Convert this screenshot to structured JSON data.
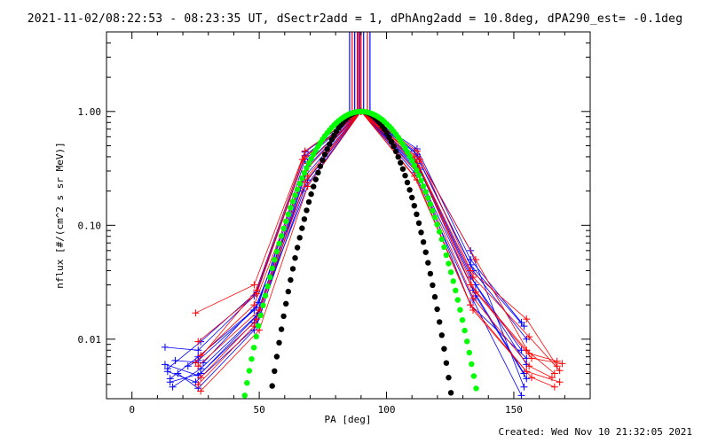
{
  "title": "2021-11-02/08:22:53 - 08:23:35 UT, dSectr2add = 1, dPhAng2add = 10.8deg, dPA290_est= -0.1deg",
  "footer": "Created: Wed Nov 10 21:32:05 2021",
  "chart_data": {
    "type": "line",
    "title": "2021-11-02/08:22:53 - 08:23:35 UT, dSectr2add = 1, dPhAng2add = 10.8deg, dPA290_est= -0.1deg",
    "xlabel": "PA [deg]",
    "ylabel": "nflux [#/(cm^2 s sr MeV)]",
    "xlim": [
      -10,
      180
    ],
    "ylim": [
      0.003,
      5
    ],
    "yscale": "log",
    "x_ticks": [
      0,
      50,
      100,
      150
    ],
    "y_ticks": [
      {
        "value": 0.01,
        "label": "0.01"
      },
      {
        "value": 0.1,
        "label": "0.10"
      },
      {
        "value": 1,
        "label": "1.00"
      }
    ],
    "grid": false,
    "colors": {
      "red": "#ff0000",
      "blue": "#0000ff",
      "black": "#000000",
      "green": "#00ff00",
      "purple": "#800080"
    },
    "reference_pa_lines": {
      "blue": [
        85.5,
        87.5,
        91.0,
        93.5
      ],
      "red": [
        86.5,
        88.5,
        90.0,
        92.5
      ],
      "purple": [
        89.0,
        89.5
      ]
    },
    "series": [
      {
        "color": "blue",
        "x": [
          13,
          26,
          48,
          68,
          90,
          112,
          133,
          153
        ],
        "y": [
          0.0085,
          0.008,
          0.024,
          0.44,
          1.0,
          0.47,
          0.05,
          0.014
        ]
      },
      {
        "color": "blue",
        "x": [
          14,
          27,
          49,
          68,
          90,
          111,
          133,
          154
        ],
        "y": [
          0.0055,
          0.0095,
          0.026,
          0.41,
          1.0,
          0.45,
          0.045,
          0.013
        ]
      },
      {
        "color": "blue",
        "x": [
          15,
          26,
          49,
          69,
          90,
          112,
          134,
          155
        ],
        "y": [
          0.0045,
          0.007,
          0.019,
          0.36,
          1.0,
          0.4,
          0.04,
          0.01
        ]
      },
      {
        "color": "blue",
        "x": [
          16,
          27,
          50,
          69,
          90,
          111,
          133,
          153
        ],
        "y": [
          0.0038,
          0.0055,
          0.017,
          0.33,
          1.0,
          0.38,
          0.035,
          0.008
        ]
      },
      {
        "color": "blue",
        "x": [
          13,
          26,
          48,
          68,
          90,
          112,
          135,
          155
        ],
        "y": [
          0.006,
          0.0048,
          0.014,
          0.3,
          1.0,
          0.35,
          0.03,
          0.006
        ]
      },
      {
        "color": "blue",
        "x": [
          14,
          25,
          49,
          68,
          90,
          111,
          134,
          154
        ],
        "y": [
          0.0052,
          0.0042,
          0.013,
          0.27,
          1.0,
          0.33,
          0.027,
          0.005
        ]
      },
      {
        "color": "blue",
        "x": [
          18,
          26,
          48,
          69,
          90,
          113,
          135,
          155
        ],
        "y": [
          0.005,
          0.0037,
          0.012,
          0.25,
          1.0,
          0.31,
          0.024,
          0.0045
        ]
      },
      {
        "color": "blue",
        "x": [
          17,
          28,
          50,
          68,
          90,
          112,
          133,
          154
        ],
        "y": [
          0.0065,
          0.0062,
          0.021,
          0.38,
          1.0,
          0.42,
          0.06,
          0.0038
        ]
      },
      {
        "color": "blue",
        "x": [
          15,
          27,
          49,
          69,
          90,
          111,
          134,
          153
        ],
        "y": [
          0.0042,
          0.005,
          0.016,
          0.22,
          1.0,
          0.29,
          0.022,
          0.0032
        ]
      },
      {
        "color": "blue",
        "x": [
          22,
          26,
          48,
          67,
          90,
          112,
          133,
          155
        ],
        "y": [
          0.0058,
          0.0065,
          0.018,
          0.2,
          1.0,
          0.3,
          0.02,
          0.0068
        ]
      },
      {
        "color": "red",
        "x": [
          25,
          48,
          68,
          90,
          112,
          133,
          155,
          167
        ],
        "y": [
          0.017,
          0.03,
          0.45,
          1.0,
          0.45,
          0.04,
          0.015,
          0.0058
        ]
      },
      {
        "color": "red",
        "x": [
          26,
          49,
          68,
          90,
          111,
          134,
          156,
          168
        ],
        "y": [
          0.0095,
          0.025,
          0.4,
          1.0,
          0.4,
          0.035,
          0.0105,
          0.0053
        ]
      },
      {
        "color": "red",
        "x": [
          27,
          48,
          69,
          90,
          112,
          133,
          155,
          166
        ],
        "y": [
          0.0072,
          0.02,
          0.35,
          1.0,
          0.36,
          0.03,
          0.008,
          0.005
        ]
      },
      {
        "color": "red",
        "x": [
          26,
          50,
          68,
          90,
          113,
          135,
          157,
          169
        ],
        "y": [
          0.0058,
          0.018,
          0.3,
          1.0,
          0.32,
          0.026,
          0.0068,
          0.0061
        ]
      },
      {
        "color": "red",
        "x": [
          27,
          49,
          69,
          90,
          112,
          134,
          156,
          165
        ],
        "y": [
          0.0046,
          0.015,
          0.27,
          1.0,
          0.29,
          0.023,
          0.0058,
          0.0046
        ]
      },
      {
        "color": "red",
        "x": [
          26,
          48,
          68,
          90,
          111,
          133,
          155,
          168
        ],
        "y": [
          0.004,
          0.013,
          0.24,
          1.0,
          0.27,
          0.02,
          0.0052,
          0.0042
        ]
      },
      {
        "color": "red",
        "x": [
          27,
          50,
          69,
          90,
          112,
          134,
          157,
          166
        ],
        "y": [
          0.0035,
          0.012,
          0.22,
          1.0,
          0.25,
          0.018,
          0.0046,
          0.0038
        ]
      },
      {
        "color": "red",
        "x": [
          25,
          49,
          67,
          90,
          113,
          135,
          156,
          167
        ],
        "y": [
          0.0062,
          0.027,
          0.38,
          1.0,
          0.38,
          0.05,
          0.0075,
          0.0064
        ]
      }
    ],
    "fits": [
      {
        "color": "black",
        "style": "thick-dots",
        "model": "sin^n",
        "n": 28,
        "peak": 1.0,
        "center_pa": 90
      },
      {
        "color": "green",
        "style": "thick-dots",
        "model": "sin^n",
        "n": 16,
        "peak": 1.0,
        "center_pa": 90
      }
    ]
  }
}
